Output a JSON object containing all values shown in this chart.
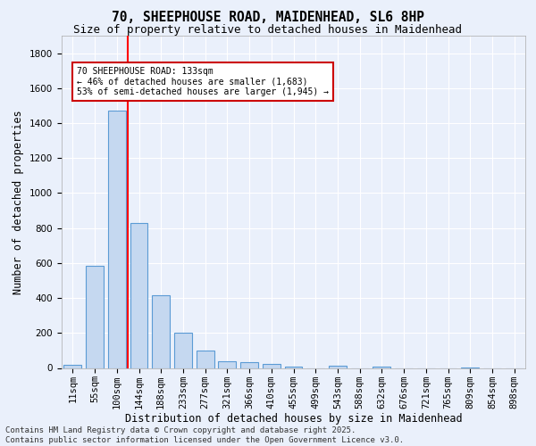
{
  "title": "70, SHEEPHOUSE ROAD, MAIDENHEAD, SL6 8HP",
  "subtitle": "Size of property relative to detached houses in Maidenhead",
  "xlabel": "Distribution of detached houses by size in Maidenhead",
  "ylabel": "Number of detached properties",
  "categories": [
    "11sqm",
    "55sqm",
    "100sqm",
    "144sqm",
    "188sqm",
    "233sqm",
    "277sqm",
    "321sqm",
    "366sqm",
    "410sqm",
    "455sqm",
    "499sqm",
    "543sqm",
    "588sqm",
    "632sqm",
    "676sqm",
    "721sqm",
    "765sqm",
    "809sqm",
    "854sqm",
    "898sqm"
  ],
  "bar_heights": [
    20,
    585,
    1470,
    830,
    415,
    200,
    100,
    38,
    35,
    25,
    10,
    0,
    15,
    0,
    10,
    0,
    0,
    0,
    5,
    0,
    0
  ],
  "bar_color": "#c5d8f0",
  "bar_edge_color": "#5b9bd5",
  "bar_width": 0.8,
  "ylim": [
    0,
    1900
  ],
  "yticks": [
    0,
    200,
    400,
    600,
    800,
    1000,
    1200,
    1400,
    1600,
    1800
  ],
  "red_line_x": 2.5,
  "annotation_text": "70 SHEEPHOUSE ROAD: 133sqm\n← 46% of detached houses are smaller (1,683)\n53% of semi-detached houses are larger (1,945) →",
  "annotation_box_color": "#ffffff",
  "annotation_box_edge": "#cc0000",
  "footer_text": "Contains HM Land Registry data © Crown copyright and database right 2025.\nContains public sector information licensed under the Open Government Licence v3.0.",
  "bg_color": "#eaf0fb",
  "grid_color": "#ffffff",
  "title_fontsize": 10.5,
  "subtitle_fontsize": 9,
  "axis_label_fontsize": 8.5,
  "tick_fontsize": 7.5,
  "footer_fontsize": 6.5
}
